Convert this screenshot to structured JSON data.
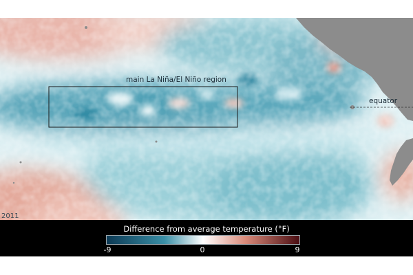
{
  "map": {
    "region_label": "main La Niña/El Niño region",
    "equator_label": "equator",
    "year": "2011"
  },
  "legend": {
    "title": "Difference from average temperature (°F)",
    "min_label": "-9",
    "mid_label": "0",
    "max_label": "9",
    "min_value": -9,
    "mid_value": 0,
    "max_value": 9,
    "colors": {
      "cold": "#0d3a55",
      "cool": "#3a8fa6",
      "neutral": "#ffffff",
      "warm": "#d98a7a",
      "hot": "#4a0d12"
    }
  },
  "colors": {
    "land": "#8c8c8c",
    "region_box": "#1a1a1a",
    "background": "#ffffff"
  }
}
